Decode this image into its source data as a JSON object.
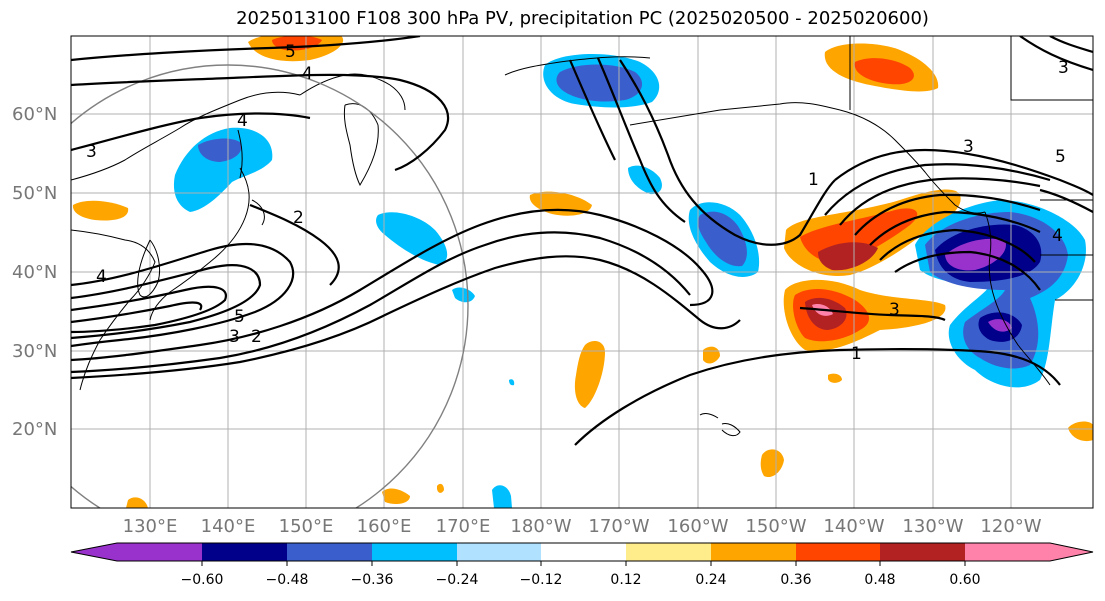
{
  "title": "2025013100 F108 300 hPa PV, precipitation PC (2025020500 - 2025020600)",
  "map": {
    "lat_labels": [
      "60°N",
      "50°N",
      "40°N",
      "30°N",
      "20°N"
    ],
    "lon_labels": [
      "130°E",
      "140°E",
      "150°E",
      "160°E",
      "170°E",
      "180°W",
      "170°W",
      "160°W",
      "150°W",
      "140°W",
      "130°W",
      "120°W"
    ],
    "contour_labels": [
      "5",
      "4",
      "4",
      "3",
      "2",
      "4",
      "5",
      "3",
      "2",
      "3",
      "1",
      "3",
      "5",
      "3",
      "1",
      "4"
    ]
  },
  "colorbar": {
    "tick_labels": [
      "−0.60",
      "−0.48",
      "−0.36",
      "−0.24",
      "−0.12",
      "0.12",
      "0.24",
      "0.36",
      "0.48",
      "0.60"
    ],
    "colors": [
      "#9932cc",
      "#00008b",
      "#3a5fcd",
      "#00bfff",
      "#b0e2ff",
      "#ffffff",
      "#ffec8b",
      "#ffa500",
      "#ff4500",
      "#b22222",
      "#ff82ab"
    ]
  }
}
